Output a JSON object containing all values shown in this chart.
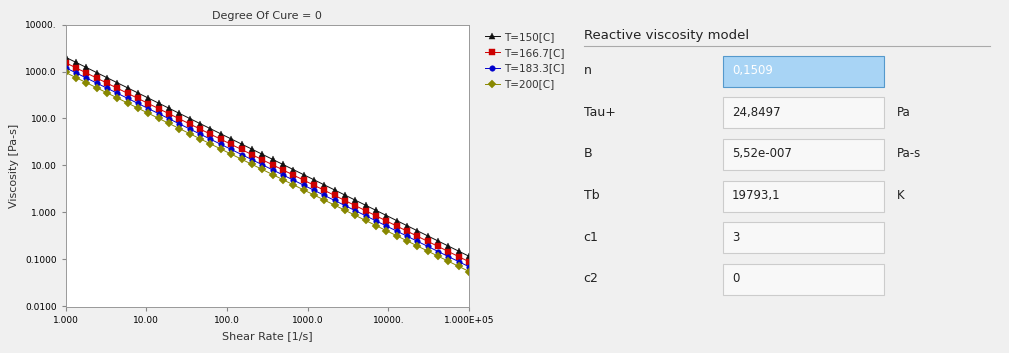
{
  "title_plot": "Degree Of Cure = 0",
  "xlabel": "Shear Rate [1/s]",
  "ylabel": "Viscosity [Pa-s]",
  "xlim": [
    1.0,
    100000.0
  ],
  "ylim": [
    0.0095,
    10000.0
  ],
  "series": [
    {
      "label": "T=150[C]",
      "color": "#111111",
      "marker": "^",
      "T_C": 150
    },
    {
      "label": "T=166.7[C]",
      "color": "#cc0000",
      "marker": "s",
      "T_C": 166.7
    },
    {
      "label": "T=183.3[C]",
      "color": "#0000cc",
      "marker": "o",
      "T_C": 183.3
    },
    {
      "label": "T=200[C]",
      "color": "#888800",
      "marker": "D",
      "T_C": 200
    }
  ],
  "n": 0.1509,
  "tau_star": 24.8497,
  "B": 5.52e-07,
  "Tb": 19793.1,
  "c1": 3,
  "c2": 0,
  "panel_title": "Reactive viscosity model",
  "params": [
    {
      "name": "n",
      "value": "0,1509",
      "unit": "",
      "highlight": true
    },
    {
      "name": "Tau+",
      "value": "24,8497",
      "unit": "Pa",
      "highlight": false
    },
    {
      "name": "B",
      "value": "5,52e-007",
      "unit": "Pa-s",
      "highlight": false
    },
    {
      "name": "Tb",
      "value": "19793,1",
      "unit": "K",
      "highlight": false
    },
    {
      "name": "c1",
      "value": "3",
      "unit": "",
      "highlight": false
    },
    {
      "name": "c2",
      "value": "0",
      "unit": "",
      "highlight": false
    }
  ],
  "bg_color": "#f0f0f0",
  "plot_bg": "#ffffff",
  "n_points": 40
}
